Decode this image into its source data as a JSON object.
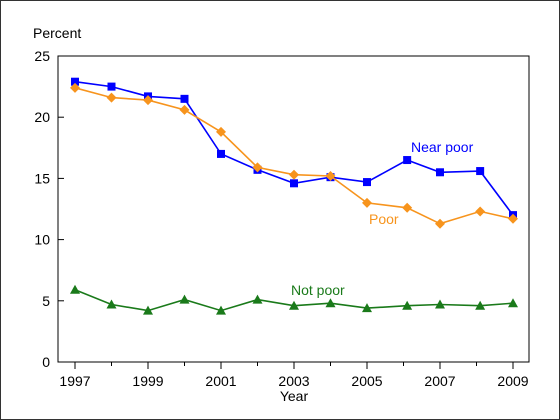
{
  "chart_data": {
    "type": "line",
    "title": "",
    "ylabel": "Percent",
    "xlabel": "Year",
    "ylim": [
      0,
      25
    ],
    "yticks": [
      0,
      5,
      10,
      15,
      20,
      25
    ],
    "xlim": [
      1997,
      2009.2
    ],
    "xtick_labels": [
      "1997",
      "1999",
      "2001",
      "2003",
      "2005",
      "2007",
      "2009"
    ],
    "grid": false,
    "legend": "inline labels",
    "series": [
      {
        "name": "Near poor",
        "color": "#0000ff",
        "marker": "square",
        "x": [
          1997.0,
          1998.0,
          1999.0,
          2000.0,
          2001.0,
          2002.0,
          2003.0,
          2004.0,
          2005.0,
          2006.1,
          2007.0,
          2008.1,
          2009.0
        ],
        "values": [
          22.9,
          22.5,
          21.7,
          21.5,
          17.0,
          15.7,
          14.6,
          15.1,
          14.7,
          16.5,
          15.5,
          15.6,
          12.0
        ]
      },
      {
        "name": "Poor",
        "color": "#f7941d",
        "marker": "diamond",
        "x": [
          1997.0,
          1998.0,
          1999.0,
          2000.0,
          2001.0,
          2002.0,
          2003.0,
          2004.0,
          2005.0,
          2006.1,
          2007.0,
          2008.1,
          2009.0
        ],
        "values": [
          22.4,
          21.6,
          21.4,
          20.6,
          18.8,
          15.9,
          15.3,
          15.2,
          13.0,
          12.6,
          11.3,
          12.3,
          11.7
        ]
      },
      {
        "name": "Not poor",
        "color": "#1a7a1a",
        "marker": "triangle",
        "x": [
          1997.0,
          1998.0,
          1999.0,
          2000.0,
          2001.0,
          2002.0,
          2003.0,
          2004.0,
          2005.0,
          2006.1,
          2007.0,
          2008.1,
          2009.0
        ],
        "values": [
          5.9,
          4.7,
          4.2,
          5.1,
          4.2,
          5.1,
          4.6,
          4.8,
          4.4,
          4.6,
          4.7,
          4.6,
          4.8
        ]
      }
    ]
  }
}
